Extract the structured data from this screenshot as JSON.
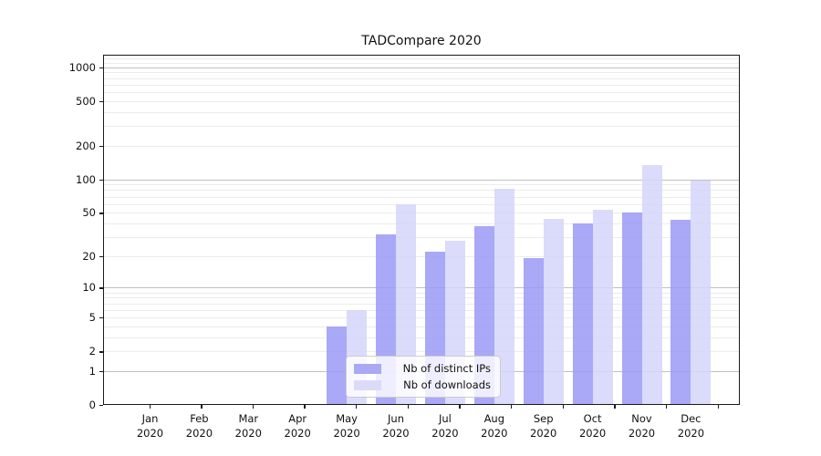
{
  "title": "TADCompare 2020",
  "colors": {
    "ips_bar": "rgba(154,154,246,0.85)",
    "downloads_bar": "rgba(213,213,250,0.85)",
    "ips_swatch": "#a9a9f4",
    "downloads_swatch": "#dbdbf9",
    "grid_minor": "#ececec",
    "grid_major": "#c0c0c0",
    "axis": "#1a1a1a"
  },
  "legend": {
    "items": [
      {
        "label": "Nb of distinct IPs"
      },
      {
        "label": "Nb of downloads"
      }
    ]
  },
  "chart_data": {
    "type": "bar",
    "title": "TADCompare 2020",
    "categories": [
      "Jan 2020",
      "Feb 2020",
      "Mar 2020",
      "Apr 2020",
      "May 2020",
      "Jun 2020",
      "Jul 2020",
      "Aug 2020",
      "Sep 2020",
      "Oct 2020",
      "Nov 2020",
      "Dec 2020"
    ],
    "series": [
      {
        "name": "Nb of distinct IPs",
        "values": [
          0,
          0,
          0,
          0,
          4,
          32,
          22,
          38,
          19,
          40,
          50,
          43
        ]
      },
      {
        "name": "Nb of downloads",
        "values": [
          0,
          0,
          0,
          0,
          6,
          60,
          28,
          82,
          44,
          53,
          135,
          97
        ]
      }
    ],
    "xlabel": "",
    "ylabel": "",
    "y_scale": "log1p (y position proportional to log10(1+value))",
    "y_ticks": [
      0,
      1,
      2,
      5,
      10,
      20,
      50,
      100,
      200,
      500,
      1000
    ],
    "y_major_gridlines": [
      1,
      10,
      100,
      1000
    ],
    "ylim": [
      0,
      1260
    ],
    "grid": "horizontal only; light minor lines at 2-9 per decade, darker lines at powers of 10",
    "legend_position": "inside plot, lower middle",
    "bar_layout": "grouped pairs, distinct-IPs bar left of downloads bar"
  }
}
